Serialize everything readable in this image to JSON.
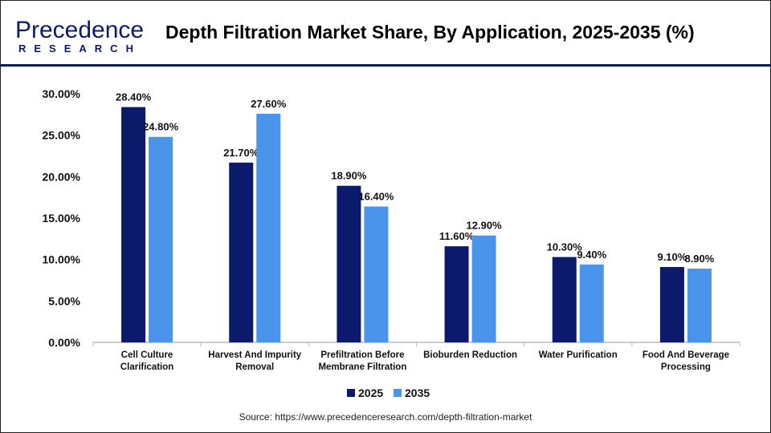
{
  "header": {
    "logo_top": "Precedence",
    "logo_bottom": "RESEARCH",
    "title": "Depth Filtration Market Share, By Application, 2025-2035 (%)"
  },
  "source": "Source: https://www.precedenceresearch.com/depth-filtration-market",
  "chart_data": {
    "type": "bar",
    "title": "Depth Filtration Market Share, By Application, 2025-2035 (%)",
    "categories": [
      [
        "Cell Culture",
        "Clarification"
      ],
      [
        "Harvest And Impurity",
        "Removal"
      ],
      [
        "Prefiltration Before",
        "Membrane Filtration"
      ],
      [
        "Bioburden Reduction"
      ],
      [
        "Water Purification"
      ],
      [
        "Food And Beverage",
        "Processing"
      ]
    ],
    "series": [
      {
        "name": "2025",
        "color": "#0b1a6b",
        "values": [
          28.4,
          21.7,
          18.9,
          11.6,
          10.3,
          9.1
        ],
        "labels": [
          "28.40%",
          "21.70%",
          "18.90%",
          "11.60%",
          "10.30%",
          "9.10%"
        ]
      },
      {
        "name": "2035",
        "color": "#4a94ec",
        "values": [
          24.8,
          27.6,
          16.4,
          12.9,
          9.4,
          8.9
        ],
        "labels": [
          "24.80%",
          "27.60%",
          "16.40%",
          "12.90%",
          "9.40%",
          "8.90%"
        ]
      }
    ],
    "ylim": [
      0,
      30
    ],
    "yticks": [
      "0.00%",
      "5.00%",
      "10.00%",
      "15.00%",
      "20.00%",
      "25.00%",
      "30.00%"
    ],
    "grid": false,
    "legend": "bottom"
  }
}
